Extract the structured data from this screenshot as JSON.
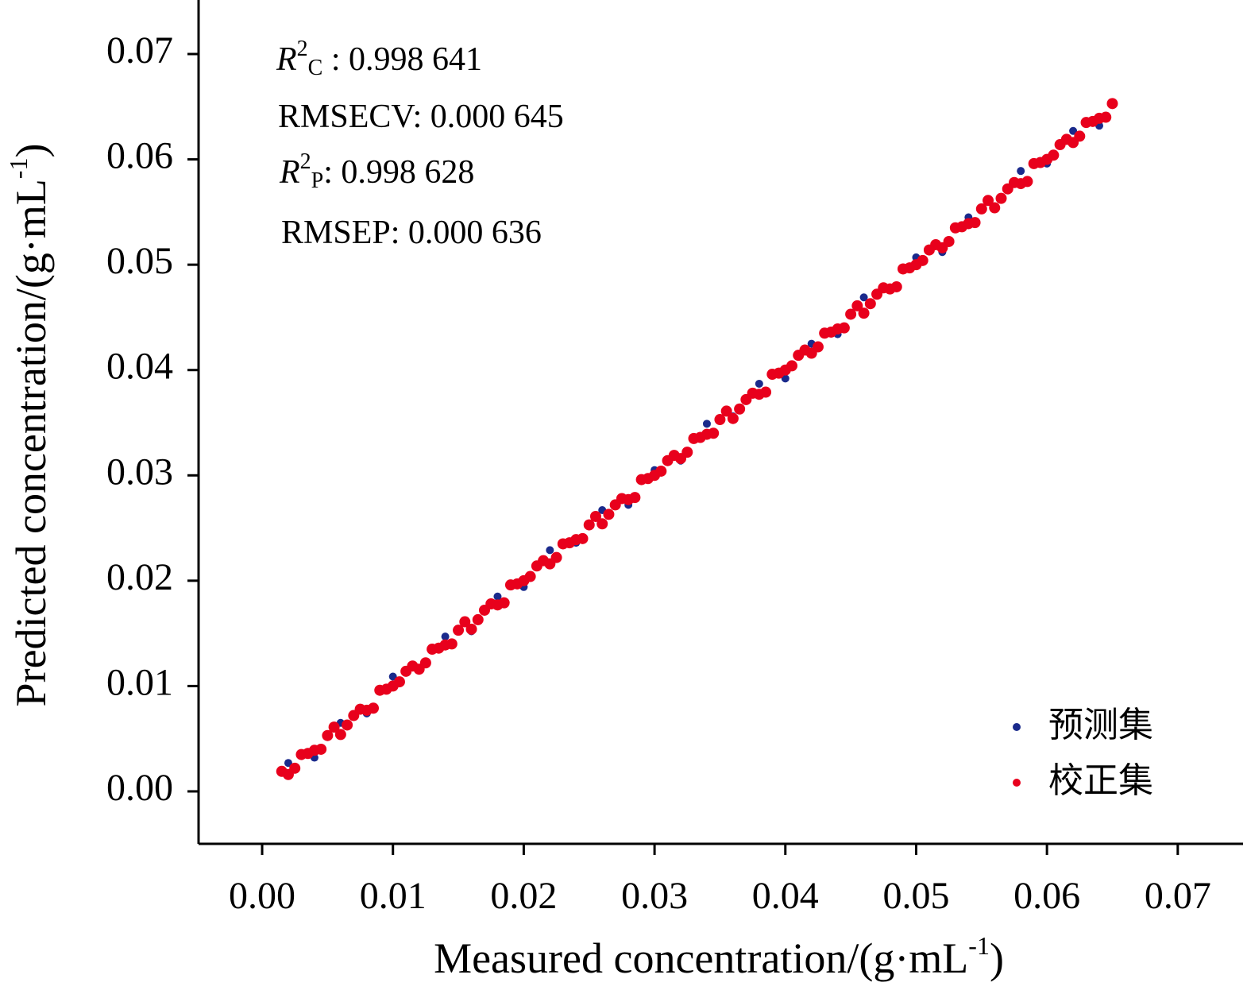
{
  "chart_data": {
    "type": "scatter",
    "xlabel": {
      "text": "Measured concentration/(g·mL",
      "sup": "-1",
      "end": ")"
    },
    "ylabel": {
      "text": "Predicted concentration/(g·mL",
      "sup": "-1",
      "end": ")"
    },
    "annotations": [
      {
        "italic": "R",
        "sup": "2",
        "sub": "C",
        "text": " : 0.998 641"
      },
      {
        "text": "RMSECV: 0.000 645"
      },
      {
        "italic": "R",
        "sup": "2",
        "sub": "P",
        "text": ": 0.998 628"
      },
      {
        "text": "RMSEP: 0.000 636"
      }
    ],
    "xlim": [
      -0.00486,
      0.07499
    ],
    "ylim": [
      -0.00498,
      0.07513
    ],
    "xticks": [
      {
        "value": 0,
        "label": "0.00"
      },
      0.01,
      0.02,
      0.03,
      0.04,
      0.05,
      0.06,
      0.07
    ],
    "yticks": [
      {
        "value": 0,
        "label": "0.00"
      },
      0.01,
      0.02,
      0.03,
      0.04,
      0.05,
      0.06,
      0.07
    ],
    "legend": "lower right",
    "series": [
      {
        "name": "预测集",
        "color": "#1a2a8c",
        "x": [
          0.002,
          0.004,
          0.006,
          0.008,
          0.01,
          0.012,
          0.014,
          0.016,
          0.018,
          0.02,
          0.022,
          0.024,
          0.026,
          0.028,
          0.03,
          0.032,
          0.034,
          0.036,
          0.038,
          0.04,
          0.042,
          0.044,
          0.046,
          0.048,
          0.05,
          0.052,
          0.054,
          0.056,
          0.058,
          0.06,
          0.062,
          0.064
        ],
        "values": [
          0.0027,
          0.0032,
          0.0065,
          0.0074,
          0.0109,
          0.0116,
          0.0147,
          0.0152,
          0.0185,
          0.0194,
          0.0229,
          0.0236,
          0.0267,
          0.0272,
          0.0305,
          0.0314,
          0.0349,
          0.0356,
          0.0387,
          0.0392,
          0.0425,
          0.0434,
          0.0469,
          0.0476,
          0.0507,
          0.0512,
          0.0545,
          0.0554,
          0.0589,
          0.0596,
          0.0627,
          0.0632
        ]
      },
      {
        "name": "校正集",
        "color": "#e8001c",
        "x": [
          0.0015,
          0.0025,
          0.0035,
          0.0045,
          0.0055,
          0.0065,
          0.0075,
          0.0085,
          0.0095,
          0.0105,
          0.0115,
          0.0125,
          0.0135,
          0.0145,
          0.0155,
          0.0165,
          0.0175,
          0.0185,
          0.0195,
          0.0205,
          0.0215,
          0.0225,
          0.0235,
          0.0245,
          0.0255,
          0.0265,
          0.0275,
          0.0285,
          0.0295,
          0.0305,
          0.0315,
          0.0325,
          0.0335,
          0.0345,
          0.0355,
          0.0365,
          0.0375,
          0.0385,
          0.0395,
          0.0405,
          0.0415,
          0.0425,
          0.0435,
          0.0445,
          0.0455,
          0.0465,
          0.0475,
          0.0485,
          0.0495,
          0.0505,
          0.0515,
          0.0525,
          0.0535,
          0.0545,
          0.0555,
          0.0565,
          0.0575,
          0.0585,
          0.0595,
          0.0605,
          0.0615,
          0.0625,
          0.0635,
          0.0645,
          0.002,
          0.003,
          0.004,
          0.005,
          0.006,
          0.007,
          0.008,
          0.009,
          0.01,
          0.011,
          0.012,
          0.013,
          0.014,
          0.015,
          0.016,
          0.017,
          0.018,
          0.019,
          0.02,
          0.021,
          0.022,
          0.023,
          0.024,
          0.025,
          0.026,
          0.027,
          0.028,
          0.029,
          0.03,
          0.031,
          0.032,
          0.033,
          0.034,
          0.035,
          0.036,
          0.037,
          0.038,
          0.039,
          0.04,
          0.041,
          0.042,
          0.043,
          0.044,
          0.045,
          0.046,
          0.047,
          0.048,
          0.049,
          0.05,
          0.051,
          0.052,
          0.053,
          0.054,
          0.055,
          0.056,
          0.057,
          0.058,
          0.059,
          0.06,
          0.061,
          0.062,
          0.063,
          0.064,
          0.065
        ],
        "values": [
          0.0019,
          0.0022,
          0.0036,
          0.004,
          0.0061,
          0.0063,
          0.0078,
          0.0079,
          0.0097,
          0.0104,
          0.0119,
          0.0122,
          0.0136,
          0.014,
          0.0161,
          0.0163,
          0.0178,
          0.0179,
          0.0197,
          0.0204,
          0.0219,
          0.0222,
          0.0236,
          0.024,
          0.0261,
          0.0263,
          0.0278,
          0.0279,
          0.0297,
          0.0304,
          0.0319,
          0.0322,
          0.0336,
          0.034,
          0.0361,
          0.0363,
          0.0378,
          0.0379,
          0.0397,
          0.0404,
          0.0419,
          0.0422,
          0.0436,
          0.044,
          0.0461,
          0.0463,
          0.0478,
          0.0479,
          0.0497,
          0.0504,
          0.0519,
          0.0522,
          0.0536,
          0.054,
          0.0561,
          0.0563,
          0.0578,
          0.0579,
          0.0597,
          0.0604,
          0.0619,
          0.0622,
          0.0636,
          0.064,
          0.0016,
          0.0035,
          0.0039,
          0.0053,
          0.0054,
          0.0072,
          0.0077,
          0.0096,
          0.01,
          0.0114,
          0.0116,
          0.0135,
          0.0139,
          0.0153,
          0.0154,
          0.0172,
          0.0177,
          0.0196,
          0.02,
          0.0214,
          0.0216,
          0.0235,
          0.0239,
          0.0253,
          0.0254,
          0.0272,
          0.0277,
          0.0296,
          0.03,
          0.0314,
          0.0316,
          0.0335,
          0.0339,
          0.0353,
          0.0354,
          0.0372,
          0.0377,
          0.0396,
          0.04,
          0.0414,
          0.0416,
          0.0435,
          0.0439,
          0.0453,
          0.0454,
          0.0472,
          0.0477,
          0.0496,
          0.05,
          0.0514,
          0.0516,
          0.0535,
          0.0539,
          0.0553,
          0.0554,
          0.0572,
          0.0577,
          0.0596,
          0.06,
          0.0614,
          0.0616,
          0.0635,
          0.0639,
          0.0653
        ]
      }
    ]
  }
}
